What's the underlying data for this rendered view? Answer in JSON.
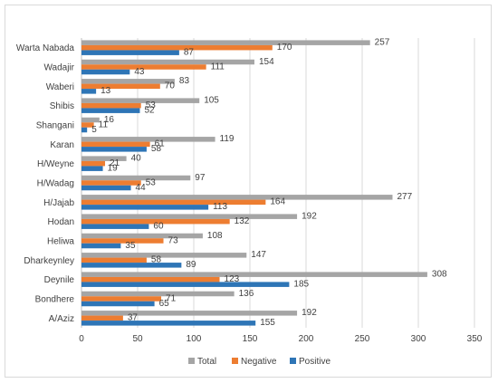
{
  "chart_data": {
    "type": "bar",
    "orientation": "horizontal",
    "categories": [
      "A/Aziz",
      "Bondhere",
      "Deynile",
      "Dharkeynley",
      "Heliwa",
      "Hodan",
      "H/Jajab",
      "H/Wadag",
      "H/Weyne",
      "Karan",
      "Shangani",
      "Shibis",
      "Waberi",
      "Wadajir",
      "Warta Nabada"
    ],
    "series": [
      {
        "name": "Total",
        "color": "#a5a5a5",
        "values": [
          192,
          136,
          308,
          147,
          108,
          192,
          277,
          97,
          40,
          119,
          16,
          105,
          83,
          154,
          257
        ]
      },
      {
        "name": "Negative",
        "color": "#ed7d31",
        "values": [
          37,
          71,
          123,
          58,
          73,
          132,
          164,
          53,
          21,
          61,
          11,
          53,
          70,
          111,
          170
        ]
      },
      {
        "name": "Positive",
        "color": "#2e75b6",
        "values": [
          155,
          65,
          185,
          89,
          35,
          60,
          113,
          44,
          19,
          58,
          5,
          52,
          13,
          43,
          87
        ]
      }
    ],
    "xlim": [
      0,
      350
    ],
    "xticks": [
      0,
      50,
      100,
      150,
      200,
      250,
      300,
      350
    ],
    "grid": "vertical",
    "legend_position": "bottom",
    "title": "",
    "xlabel": "",
    "ylabel": ""
  }
}
